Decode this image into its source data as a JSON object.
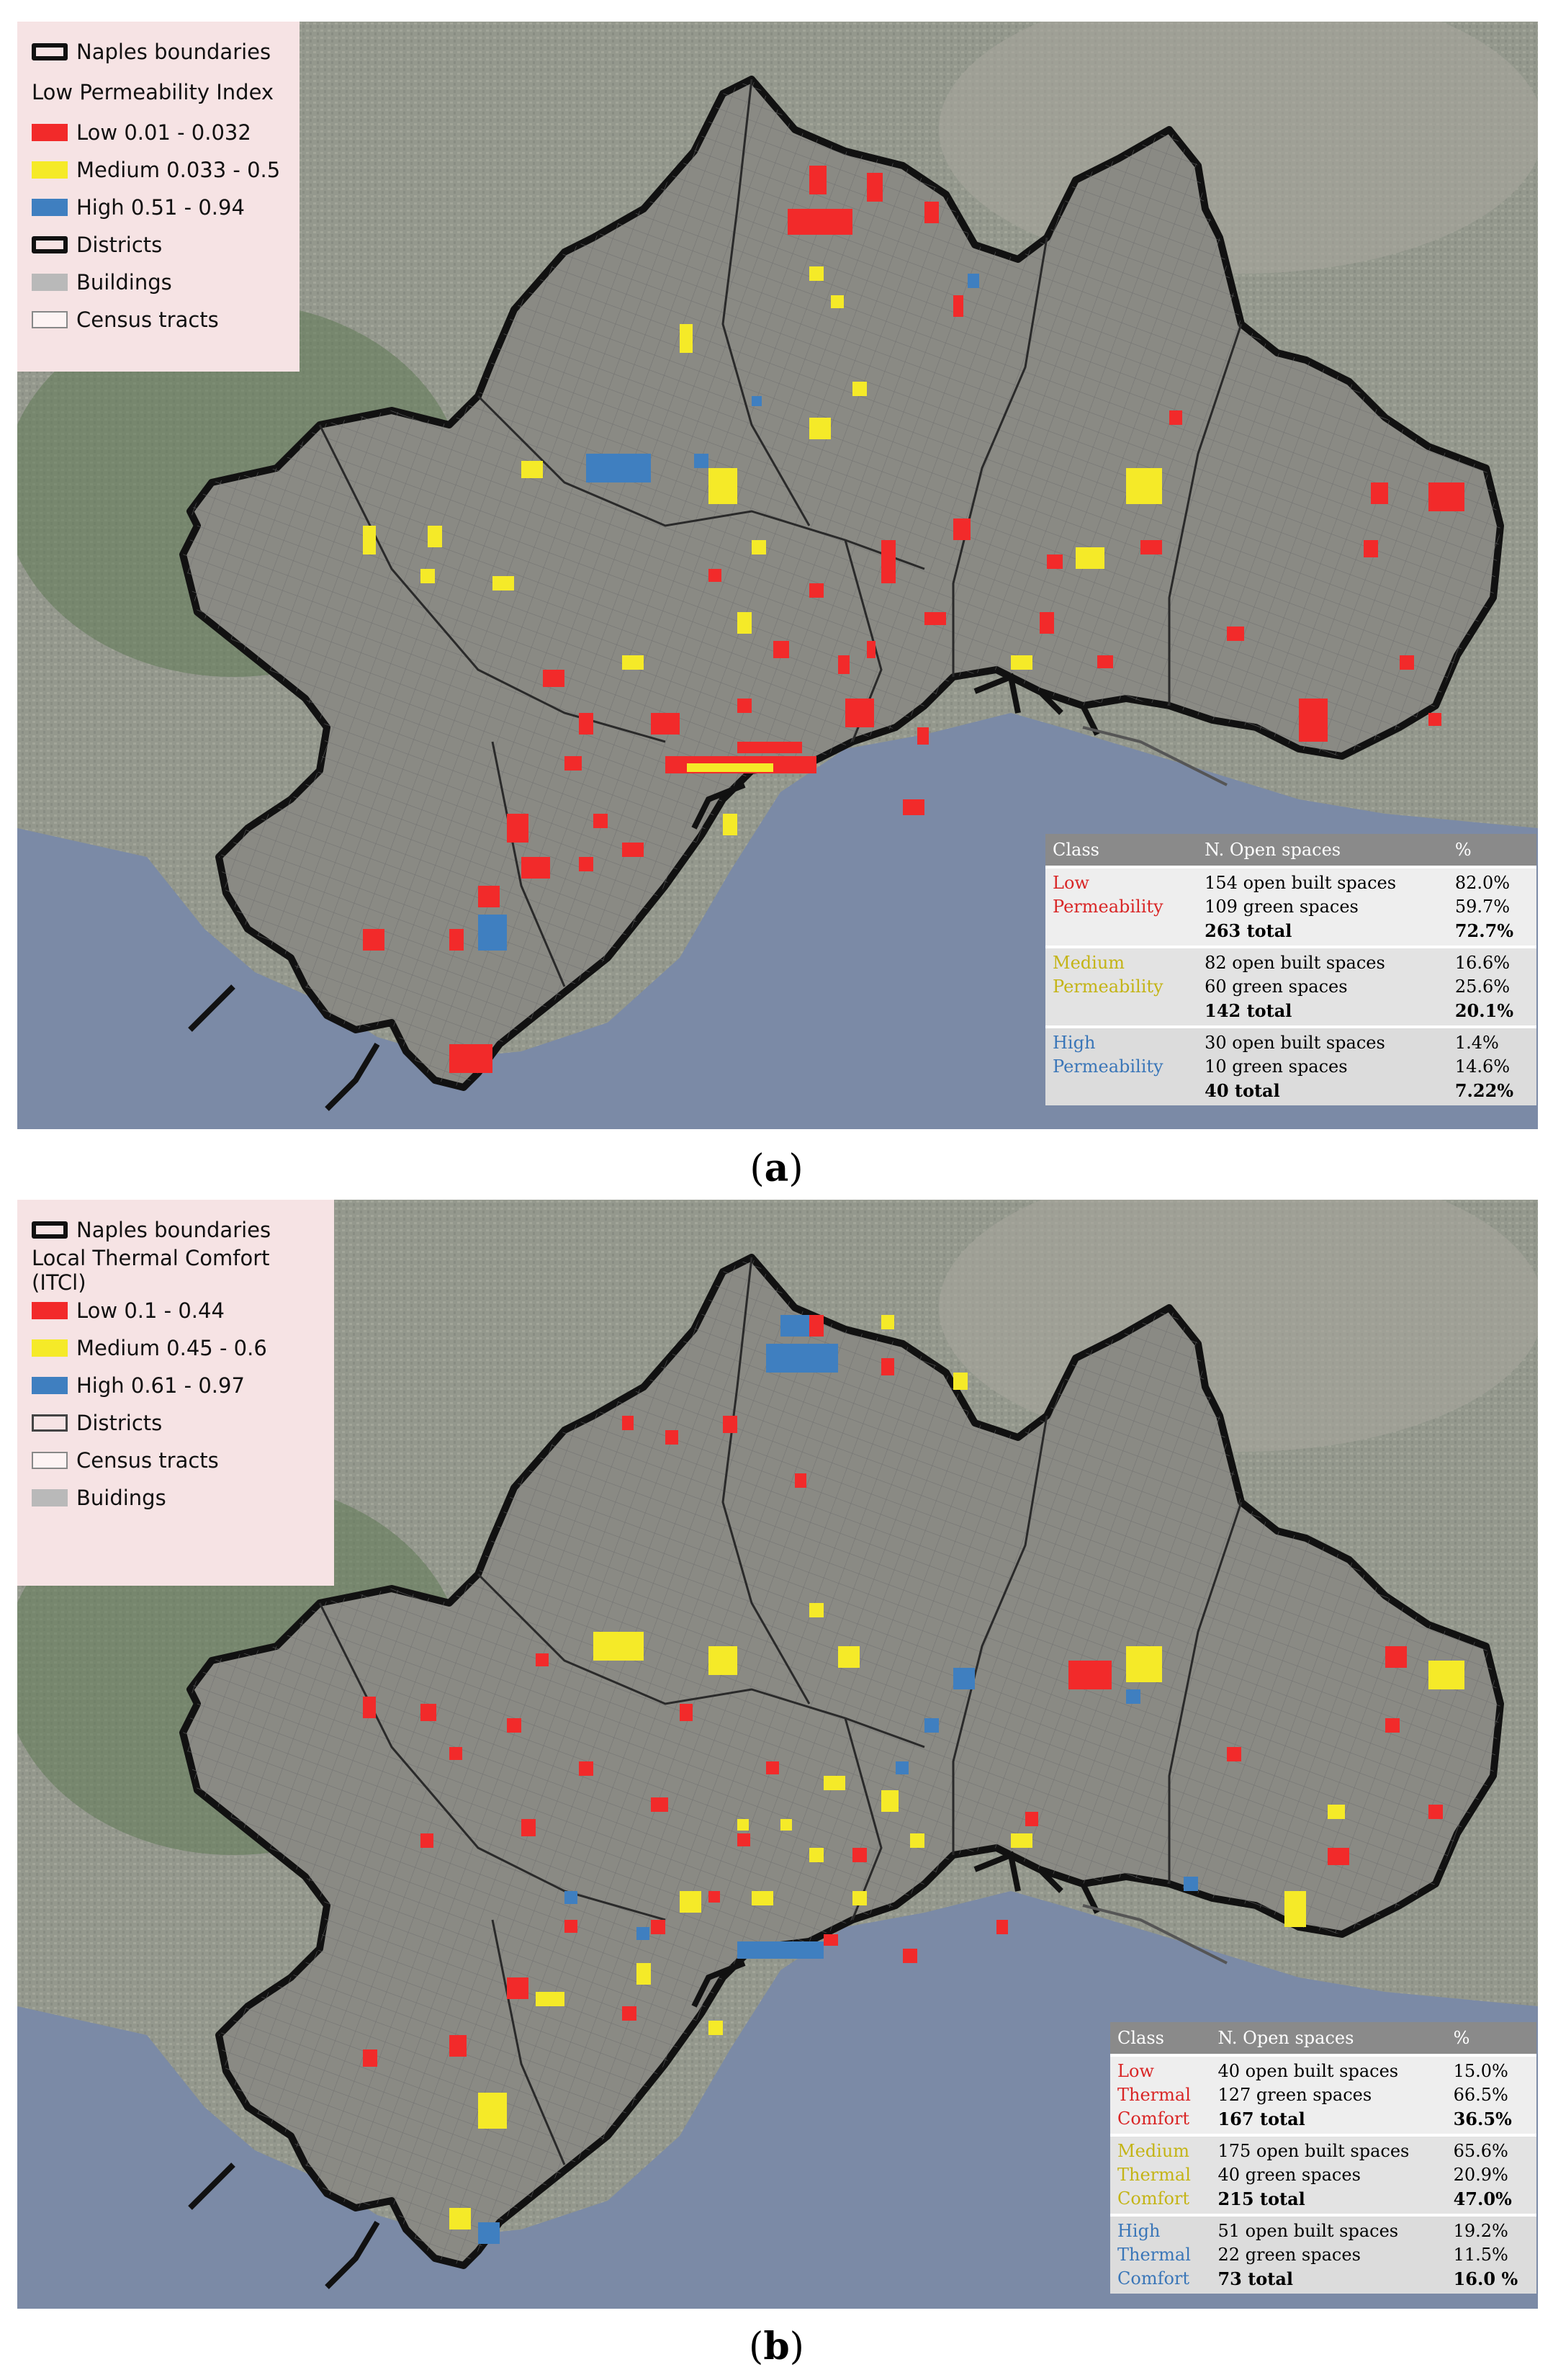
{
  "panel_a": {
    "legend": {
      "boundaries": "Naples boundaries",
      "title": "Low Permeability Index",
      "low": "Low 0.01 - 0.032",
      "medium": "Medium 0.033 - 0.5",
      "high": "High 0.51 - 0.94",
      "districts": "Districts",
      "buildings": "Buildings",
      "tracts": "Census tracts"
    },
    "table": {
      "headers": [
        "Class",
        "N. Open spaces",
        "%"
      ],
      "rows": [
        {
          "class_line1": "Low",
          "class_line2": "Permeability",
          "class_line3": "",
          "built": "154 open built spaces",
          "green": "109 green spaces",
          "total": "263 total",
          "pct_built": "82.0%",
          "pct_green": "59.7%",
          "pct_total": "72.7%"
        },
        {
          "class_line1": "Medium",
          "class_line2": "Permeability",
          "class_line3": "",
          "built": "82 open built spaces",
          "green": "60 green spaces",
          "total": "142 total",
          "pct_built": "16.6%",
          "pct_green": "25.6%",
          "pct_total": "20.1%"
        },
        {
          "class_line1": "High",
          "class_line2": "Permeability",
          "class_line3": "",
          "built": "30 open built spaces",
          "green": "10 green spaces",
          "total": "40 total",
          "pct_built": "1.4%",
          "pct_green": "14.6%",
          "pct_total": "7.22%"
        }
      ]
    },
    "caption_letter": "a"
  },
  "panel_b": {
    "legend": {
      "boundaries": "Naples boundaries",
      "title": "Local Thermal Comfort (ITCl)",
      "low": "Low 0.1 - 0.44",
      "medium": "Medium 0.45 - 0.6",
      "high": "High 0.61 - 0.97",
      "districts": "Districts",
      "tracts": "Census tracts",
      "buildings": "Buidings"
    },
    "table": {
      "headers": [
        "Class",
        "N. Open spaces",
        "%"
      ],
      "rows": [
        {
          "class_line1": "Low",
          "class_line2": "Thermal",
          "class_line3": "Comfort",
          "built": "40 open built spaces",
          "green": "127 green spaces",
          "total": "167 total",
          "pct_built": "15.0%",
          "pct_green": "66.5%",
          "pct_total": "36.5%"
        },
        {
          "class_line1": "Medium",
          "class_line2": "Thermal",
          "class_line3": "Comfort",
          "built": "175 open built spaces",
          "green": "40 green spaces",
          "total": "215 total",
          "pct_built": "65.6%",
          "pct_green": "20.9%",
          "pct_total": "47.0%"
        },
        {
          "class_line1": "High",
          "class_line2": "Thermal",
          "class_line3": "Comfort",
          "built": "51 open built spaces",
          "green": "22 green spaces",
          "total": "73 total",
          "pct_built": "19.2%",
          "pct_green": "11.5%",
          "pct_total": "16.0 %"
        }
      ]
    },
    "caption_letter": "b"
  },
  "colors": {
    "low": "#f22a2a",
    "medium": "#f5ea28",
    "high": "#3f7fc0",
    "boundary": "#111111",
    "sea": "#7b8aa6",
    "land": "#8e968a",
    "legend_bg": "#f6e3e4"
  }
}
